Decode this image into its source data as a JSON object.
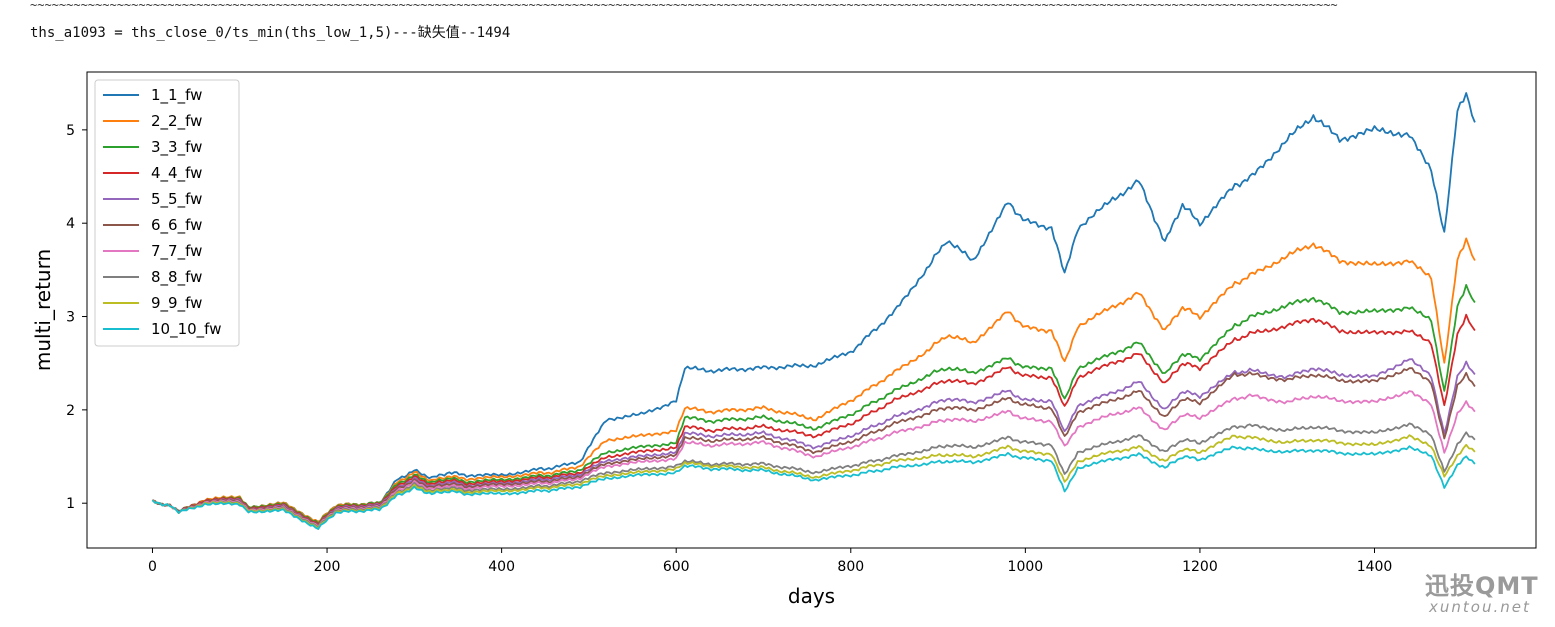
{
  "header": {
    "tildes": "~~~~~~~~~~~~~~~~~~~~~~~~~~~~~~~~~~~~~~~~~~~~~~~~~~~~~~~~~~~~~~~~~~~~~~~~~~~~~~~~~~~~~~~~~~~~~~~~~~~~~~~~~~~~~~~~~~~~~~~~~~~~~~~~~~~~~~~~~~~~~~~~~~~~~~~~~~~~~~~~~~~~~~~~~~~~~~~~~~~~~",
    "formula": "ths_a1093 = ths_close_0/ts_min(ths_low_1,5)---缺失值--1494"
  },
  "watermark": {
    "main": "迅投QMT",
    "sub": "xuntou.net"
  },
  "chart_data": {
    "type": "line",
    "title": "",
    "xlabel": "days",
    "ylabel": "multi_return",
    "xlim": [
      -75,
      1585
    ],
    "ylim": [
      0.52,
      5.62
    ],
    "xticks": [
      0,
      200,
      400,
      600,
      800,
      1000,
      1200,
      1400
    ],
    "yticks": [
      1,
      2,
      3,
      4,
      5
    ],
    "legend": "upper-left",
    "grid": false,
    "x": [
      0,
      20,
      30,
      60,
      100,
      110,
      150,
      190,
      210,
      260,
      280,
      300,
      320,
      340,
      360,
      400,
      440,
      460,
      490,
      520,
      560,
      600,
      610,
      640,
      700,
      760,
      800,
      850,
      890,
      910,
      940,
      980,
      1000,
      1030,
      1045,
      1060,
      1100,
      1130,
      1160,
      1180,
      1200,
      1240,
      1260,
      1300,
      1330,
      1360,
      1400,
      1440,
      1465,
      1480,
      1495,
      1505,
      1515
    ],
    "series": [
      {
        "name": "1_1_fw",
        "color": "#1f77b4",
        "values": [
          1.02,
          0.97,
          0.91,
          1.04,
          1.05,
          0.96,
          1.0,
          0.8,
          0.98,
          1.0,
          1.25,
          1.35,
          1.27,
          1.33,
          1.3,
          1.3,
          1.36,
          1.38,
          1.45,
          1.9,
          1.95,
          2.1,
          2.45,
          2.42,
          2.45,
          2.48,
          2.62,
          3.05,
          3.55,
          3.82,
          3.6,
          4.22,
          4.02,
          3.95,
          3.45,
          3.95,
          4.25,
          4.45,
          3.8,
          4.2,
          4.0,
          4.4,
          4.5,
          4.9,
          5.15,
          4.9,
          5.0,
          4.95,
          4.55,
          3.9,
          5.2,
          5.38,
          5.08
        ]
      },
      {
        "name": "2_2_fw",
        "color": "#ff7f0e",
        "values": [
          1.02,
          0.97,
          0.91,
          1.04,
          1.07,
          0.96,
          1.0,
          0.8,
          0.98,
          1.0,
          1.22,
          1.33,
          1.24,
          1.29,
          1.26,
          1.28,
          1.32,
          1.33,
          1.4,
          1.68,
          1.72,
          1.78,
          2.02,
          1.98,
          2.02,
          1.9,
          2.1,
          2.4,
          2.65,
          2.8,
          2.72,
          3.05,
          2.88,
          2.85,
          2.5,
          2.9,
          3.1,
          3.25,
          2.85,
          3.1,
          3.0,
          3.35,
          3.45,
          3.65,
          3.78,
          3.6,
          3.55,
          3.6,
          3.4,
          2.5,
          3.6,
          3.82,
          3.6
        ]
      },
      {
        "name": "3_3_fw",
        "color": "#2ca02c",
        "values": [
          1.02,
          0.97,
          0.91,
          1.03,
          1.06,
          0.96,
          0.99,
          0.79,
          0.97,
          1.0,
          1.2,
          1.3,
          1.22,
          1.27,
          1.23,
          1.25,
          1.29,
          1.3,
          1.36,
          1.55,
          1.6,
          1.65,
          1.92,
          1.88,
          1.92,
          1.8,
          1.95,
          2.2,
          2.38,
          2.45,
          2.4,
          2.55,
          2.45,
          2.45,
          2.1,
          2.45,
          2.6,
          2.72,
          2.38,
          2.6,
          2.55,
          2.9,
          3.0,
          3.12,
          3.2,
          3.05,
          3.05,
          3.1,
          2.95,
          2.2,
          3.1,
          3.32,
          3.15
        ]
      },
      {
        "name": "4_4_fw",
        "color": "#d62728",
        "values": [
          1.02,
          0.97,
          0.91,
          1.03,
          1.05,
          0.95,
          0.98,
          0.78,
          0.96,
          0.99,
          1.18,
          1.28,
          1.2,
          1.25,
          1.21,
          1.23,
          1.27,
          1.28,
          1.33,
          1.5,
          1.55,
          1.6,
          1.82,
          1.78,
          1.82,
          1.72,
          1.85,
          2.1,
          2.25,
          2.32,
          2.28,
          2.45,
          2.36,
          2.35,
          2.02,
          2.35,
          2.5,
          2.6,
          2.28,
          2.5,
          2.45,
          2.75,
          2.82,
          2.9,
          2.98,
          2.85,
          2.82,
          2.85,
          2.7,
          2.05,
          2.8,
          3.0,
          2.85
        ]
      },
      {
        "name": "5_5_fw",
        "color": "#9467bd",
        "values": [
          1.02,
          0.97,
          0.91,
          1.02,
          1.04,
          0.94,
          0.97,
          0.77,
          0.95,
          0.98,
          1.16,
          1.26,
          1.18,
          1.23,
          1.19,
          1.21,
          1.25,
          1.26,
          1.31,
          1.46,
          1.5,
          1.55,
          1.75,
          1.72,
          1.75,
          1.6,
          1.72,
          1.92,
          2.05,
          2.12,
          2.08,
          2.2,
          2.1,
          2.1,
          1.75,
          2.05,
          2.18,
          2.3,
          2.0,
          2.2,
          2.15,
          2.4,
          2.42,
          2.35,
          2.45,
          2.38,
          2.35,
          2.55,
          2.35,
          1.75,
          2.35,
          2.5,
          2.38
        ]
      },
      {
        "name": "6_6_fw",
        "color": "#8c564b",
        "values": [
          1.02,
          0.97,
          0.91,
          1.02,
          1.03,
          0.94,
          0.96,
          0.77,
          0.94,
          0.97,
          1.15,
          1.24,
          1.17,
          1.21,
          1.18,
          1.2,
          1.23,
          1.24,
          1.29,
          1.43,
          1.47,
          1.52,
          1.7,
          1.67,
          1.7,
          1.55,
          1.66,
          1.85,
          1.97,
          2.03,
          2.0,
          2.12,
          2.05,
          2.02,
          1.7,
          1.98,
          2.1,
          2.2,
          1.92,
          2.12,
          2.08,
          2.38,
          2.38,
          2.32,
          2.38,
          2.32,
          2.3,
          2.45,
          2.28,
          1.7,
          2.25,
          2.38,
          2.25
        ]
      },
      {
        "name": "7_7_fw",
        "color": "#e377c2",
        "values": [
          1.02,
          0.97,
          0.9,
          1.01,
          1.02,
          0.93,
          0.95,
          0.76,
          0.93,
          0.96,
          1.13,
          1.22,
          1.15,
          1.19,
          1.16,
          1.18,
          1.21,
          1.22,
          1.27,
          1.4,
          1.44,
          1.48,
          1.65,
          1.62,
          1.65,
          1.5,
          1.6,
          1.75,
          1.85,
          1.9,
          1.88,
          1.98,
          1.9,
          1.88,
          1.6,
          1.82,
          1.95,
          2.02,
          1.78,
          1.95,
          1.92,
          2.12,
          2.15,
          2.08,
          2.15,
          2.1,
          2.08,
          2.2,
          2.05,
          1.55,
          1.95,
          2.08,
          1.98
        ]
      },
      {
        "name": "8_8_fw",
        "color": "#7f7f7f",
        "values": [
          1.02,
          0.97,
          0.9,
          1.0,
          1.01,
          0.92,
          0.94,
          0.75,
          0.92,
          0.95,
          1.11,
          1.2,
          1.13,
          1.17,
          1.14,
          1.15,
          1.18,
          1.19,
          1.24,
          1.33,
          1.36,
          1.4,
          1.45,
          1.42,
          1.42,
          1.33,
          1.4,
          1.5,
          1.58,
          1.62,
          1.6,
          1.7,
          1.65,
          1.63,
          1.3,
          1.55,
          1.65,
          1.72,
          1.55,
          1.68,
          1.65,
          1.82,
          1.83,
          1.78,
          1.82,
          1.78,
          1.75,
          1.85,
          1.72,
          1.35,
          1.62,
          1.75,
          1.68
        ]
      },
      {
        "name": "9_9_fw",
        "color": "#bcbd22",
        "values": [
          1.02,
          0.97,
          0.9,
          1.0,
          1.0,
          0.92,
          0.93,
          0.74,
          0.91,
          0.94,
          1.1,
          1.18,
          1.12,
          1.15,
          1.12,
          1.13,
          1.16,
          1.17,
          1.21,
          1.3,
          1.33,
          1.37,
          1.43,
          1.4,
          1.38,
          1.28,
          1.35,
          1.45,
          1.5,
          1.52,
          1.5,
          1.6,
          1.55,
          1.53,
          1.22,
          1.45,
          1.55,
          1.6,
          1.45,
          1.58,
          1.55,
          1.72,
          1.7,
          1.65,
          1.68,
          1.65,
          1.62,
          1.72,
          1.6,
          1.3,
          1.5,
          1.62,
          1.55
        ]
      },
      {
        "name": "10_10_fw",
        "color": "#17becf",
        "values": [
          1.02,
          0.97,
          0.9,
          0.99,
          0.99,
          0.91,
          0.92,
          0.73,
          0.9,
          0.93,
          1.08,
          1.16,
          1.1,
          1.13,
          1.1,
          1.1,
          1.13,
          1.14,
          1.18,
          1.27,
          1.3,
          1.33,
          1.4,
          1.37,
          1.35,
          1.25,
          1.3,
          1.38,
          1.43,
          1.45,
          1.44,
          1.52,
          1.48,
          1.46,
          1.12,
          1.38,
          1.47,
          1.52,
          1.38,
          1.5,
          1.47,
          1.6,
          1.58,
          1.55,
          1.57,
          1.54,
          1.52,
          1.6,
          1.5,
          1.18,
          1.4,
          1.5,
          1.42
        ]
      }
    ]
  }
}
